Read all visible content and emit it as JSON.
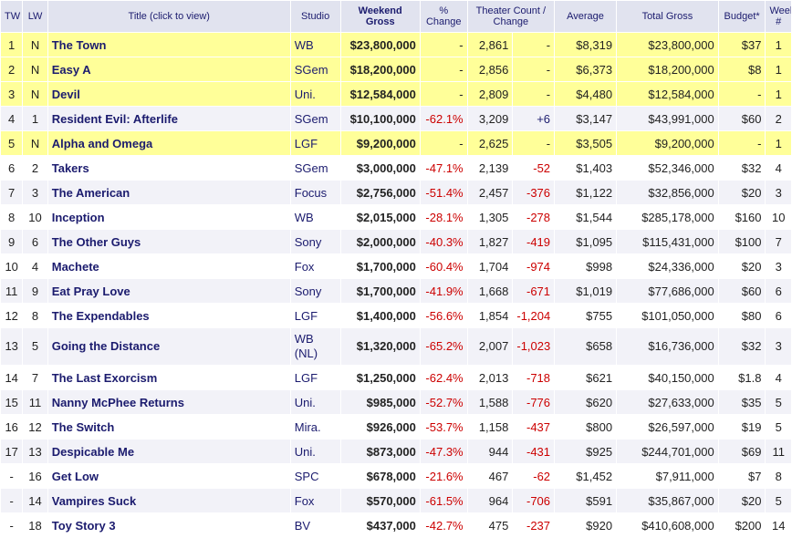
{
  "headers": {
    "tw": "TW",
    "lw": "LW",
    "title": "Title (click to view)",
    "studio": "Studio",
    "gross": "Weekend Gross",
    "pct": "% Change",
    "theaters": "Theater Count / Change",
    "average": "Average",
    "total": "Total Gross",
    "budget": "Budget*",
    "week": "Week #"
  },
  "rows": [
    {
      "tw": "1",
      "lw": "N",
      "title": "The Town",
      "studio": "WB",
      "gross": "$23,800,000",
      "pct": "-",
      "theaters": "2,861",
      "change": "-",
      "average": "$8,319",
      "total": "$23,800,000",
      "budget": "$37",
      "week": "1",
      "new": true
    },
    {
      "tw": "2",
      "lw": "N",
      "title": "Easy A",
      "studio": "SGem",
      "gross": "$18,200,000",
      "pct": "-",
      "theaters": "2,856",
      "change": "-",
      "average": "$6,373",
      "total": "$18,200,000",
      "budget": "$8",
      "week": "1",
      "new": true
    },
    {
      "tw": "3",
      "lw": "N",
      "title": "Devil",
      "studio": "Uni.",
      "gross": "$12,584,000",
      "pct": "-",
      "theaters": "2,809",
      "change": "-",
      "average": "$4,480",
      "total": "$12,584,000",
      "budget": "-",
      "week": "1",
      "new": true
    },
    {
      "tw": "4",
      "lw": "1",
      "title": "Resident Evil: Afterlife",
      "studio": "SGem",
      "gross": "$10,100,000",
      "pct": "-62.1%",
      "theaters": "3,209",
      "change": "+6",
      "average": "$3,147",
      "total": "$43,991,000",
      "budget": "$60",
      "week": "2",
      "new": false
    },
    {
      "tw": "5",
      "lw": "N",
      "title": "Alpha and Omega",
      "studio": "LGF",
      "gross": "$9,200,000",
      "pct": "-",
      "theaters": "2,625",
      "change": "-",
      "average": "$3,505",
      "total": "$9,200,000",
      "budget": "-",
      "week": "1",
      "new": true
    },
    {
      "tw": "6",
      "lw": "2",
      "title": "Takers",
      "studio": "SGem",
      "gross": "$3,000,000",
      "pct": "-47.1%",
      "theaters": "2,139",
      "change": "-52",
      "average": "$1,403",
      "total": "$52,346,000",
      "budget": "$32",
      "week": "4",
      "new": false
    },
    {
      "tw": "7",
      "lw": "3",
      "title": "The American",
      "studio": "Focus",
      "gross": "$2,756,000",
      "pct": "-51.4%",
      "theaters": "2,457",
      "change": "-376",
      "average": "$1,122",
      "total": "$32,856,000",
      "budget": "$20",
      "week": "3",
      "new": false
    },
    {
      "tw": "8",
      "lw": "10",
      "title": "Inception",
      "studio": "WB",
      "gross": "$2,015,000",
      "pct": "-28.1%",
      "theaters": "1,305",
      "change": "-278",
      "average": "$1,544",
      "total": "$285,178,000",
      "budget": "$160",
      "week": "10",
      "new": false
    },
    {
      "tw": "9",
      "lw": "6",
      "title": "The Other Guys",
      "studio": "Sony",
      "gross": "$2,000,000",
      "pct": "-40.3%",
      "theaters": "1,827",
      "change": "-419",
      "average": "$1,095",
      "total": "$115,431,000",
      "budget": "$100",
      "week": "7",
      "new": false
    },
    {
      "tw": "10",
      "lw": "4",
      "title": "Machete",
      "studio": "Fox",
      "gross": "$1,700,000",
      "pct": "-60.4%",
      "theaters": "1,704",
      "change": "-974",
      "average": "$998",
      "total": "$24,336,000",
      "budget": "$20",
      "week": "3",
      "new": false
    },
    {
      "tw": "11",
      "lw": "9",
      "title": "Eat Pray Love",
      "studio": "Sony",
      "gross": "$1,700,000",
      "pct": "-41.9%",
      "theaters": "1,668",
      "change": "-671",
      "average": "$1,019",
      "total": "$77,686,000",
      "budget": "$60",
      "week": "6",
      "new": false
    },
    {
      "tw": "12",
      "lw": "8",
      "title": "The Expendables",
      "studio": "LGF",
      "gross": "$1,400,000",
      "pct": "-56.6%",
      "theaters": "1,854",
      "change": "-1,204",
      "average": "$755",
      "total": "$101,050,000",
      "budget": "$80",
      "week": "6",
      "new": false
    },
    {
      "tw": "13",
      "lw": "5",
      "title": "Going the Distance",
      "studio": "WB (NL)",
      "gross": "$1,320,000",
      "pct": "-65.2%",
      "theaters": "2,007",
      "change": "-1,023",
      "average": "$658",
      "total": "$16,736,000",
      "budget": "$32",
      "week": "3",
      "new": false,
      "tall": true
    },
    {
      "tw": "14",
      "lw": "7",
      "title": "The Last Exorcism",
      "studio": "LGF",
      "gross": "$1,250,000",
      "pct": "-62.4%",
      "theaters": "2,013",
      "change": "-718",
      "average": "$621",
      "total": "$40,150,000",
      "budget": "$1.8",
      "week": "4",
      "new": false
    },
    {
      "tw": "15",
      "lw": "11",
      "title": "Nanny McPhee Returns",
      "studio": "Uni.",
      "gross": "$985,000",
      "pct": "-52.7%",
      "theaters": "1,588",
      "change": "-776",
      "average": "$620",
      "total": "$27,633,000",
      "budget": "$35",
      "week": "5",
      "new": false
    },
    {
      "tw": "16",
      "lw": "12",
      "title": "The Switch",
      "studio": "Mira.",
      "gross": "$926,000",
      "pct": "-53.7%",
      "theaters": "1,158",
      "change": "-437",
      "average": "$800",
      "total": "$26,597,000",
      "budget": "$19",
      "week": "5",
      "new": false
    },
    {
      "tw": "17",
      "lw": "13",
      "title": "Despicable Me",
      "studio": "Uni.",
      "gross": "$873,000",
      "pct": "-47.3%",
      "theaters": "944",
      "change": "-431",
      "average": "$925",
      "total": "$244,701,000",
      "budget": "$69",
      "week": "11",
      "new": false
    },
    {
      "tw": "-",
      "lw": "16",
      "title": "Get Low",
      "studio": "SPC",
      "gross": "$678,000",
      "pct": "-21.6%",
      "theaters": "467",
      "change": "-62",
      "average": "$1,452",
      "total": "$7,911,000",
      "budget": "$7",
      "week": "8",
      "new": false
    },
    {
      "tw": "-",
      "lw": "14",
      "title": "Vampires Suck",
      "studio": "Fox",
      "gross": "$570,000",
      "pct": "-61.5%",
      "theaters": "964",
      "change": "-706",
      "average": "$591",
      "total": "$35,867,000",
      "budget": "$20",
      "week": "5",
      "new": false
    },
    {
      "tw": "-",
      "lw": "18",
      "title": "Toy Story 3",
      "studio": "BV",
      "gross": "$437,000",
      "pct": "-42.7%",
      "theaters": "475",
      "change": "-237",
      "average": "$920",
      "total": "$410,608,000",
      "budget": "$200",
      "week": "14",
      "new": false
    }
  ],
  "colors": {
    "header_bg": "#e1e3ef",
    "new_row_bg": "#ffff99",
    "alt_row_bg": "#f2f2f8",
    "title_color": "#1b1b6e",
    "negative_color": "#cc0000"
  }
}
